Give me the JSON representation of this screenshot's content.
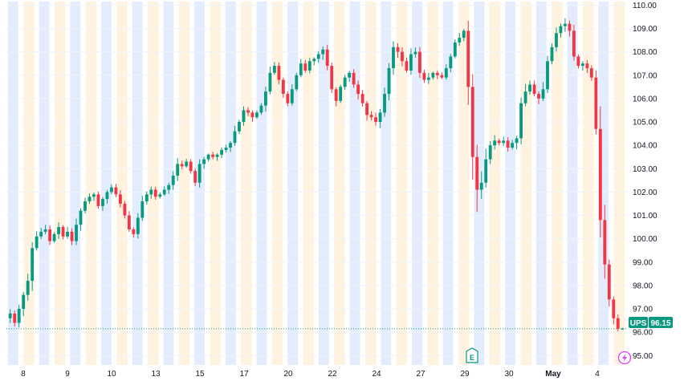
{
  "ticker": "UPS",
  "last_price_label": "96.15",
  "colors": {
    "up": "#089981",
    "down": "#f23645",
    "session_pre": "#fff3e0",
    "session_post": "#e3ecfc",
    "grid": "#f0f3fa",
    "text": "#131722",
    "tag_bg": "#089981",
    "earnings": "#089981",
    "lightning": "#e040fb"
  },
  "icons": {
    "earnings": "E",
    "lightning": "lightning-bolt-icon"
  },
  "chart_data": {
    "type": "candlestick",
    "title": "",
    "xlabel": "",
    "ylabel": "",
    "ylim": [
      94.6,
      110.15
    ],
    "y_ticks": [
      "95.00",
      "96.00",
      "97.00",
      "98.00",
      "99.00",
      "100.00",
      "101.00",
      "102.00",
      "103.00",
      "104.00",
      "105.00",
      "106.00",
      "107.00",
      "108.00",
      "109.00",
      "110.00"
    ],
    "y_tick_values": [
      95,
      96,
      97,
      98,
      99,
      100,
      101,
      102,
      103,
      104,
      105,
      106,
      107,
      108,
      109,
      110
    ],
    "x_ticks": [
      "8",
      "9",
      "10",
      "13",
      "15",
      "17",
      "20",
      "22",
      "24",
      "27",
      "29",
      "30",
      "May",
      "4"
    ],
    "last_price": 96.15,
    "grid": true,
    "sessions": 20,
    "closes": [
      96.8,
      96.4,
      97.0,
      97.6,
      98.2,
      99.6,
      100.1,
      100.3,
      100.4,
      99.9,
      100.2,
      100.5,
      100.1,
      100.3,
      99.9,
      100.6,
      101.2,
      101.6,
      101.8,
      101.9,
      101.4,
      101.7,
      102.0,
      102.2,
      101.9,
      101.5,
      101.0,
      100.4,
      100.2,
      100.9,
      101.6,
      101.9,
      102.1,
      101.8,
      101.9,
      102.1,
      102.3,
      102.7,
      103.2,
      103.1,
      103.3,
      102.9,
      102.4,
      103.2,
      103.4,
      103.6,
      103.5,
      103.6,
      103.8,
      103.9,
      104.1,
      104.6,
      105.0,
      105.5,
      105.4,
      105.2,
      105.4,
      105.7,
      106.3,
      107.1,
      107.4,
      106.8,
      106.2,
      105.8,
      106.4,
      107.0,
      107.5,
      107.2,
      107.6,
      107.7,
      107.9,
      108.1,
      107.4,
      106.4,
      105.9,
      106.5,
      106.9,
      107.1,
      106.6,
      106.2,
      105.8,
      105.3,
      105.2,
      105.0,
      105.4,
      106.2,
      107.3,
      108.2,
      108.0,
      107.6,
      107.2,
      107.9,
      108.0,
      107.1,
      106.8,
      106.9,
      107.1,
      107.0,
      106.9,
      107.3,
      107.8,
      108.4,
      108.6,
      108.9,
      106.5,
      103.5,
      102.1,
      102.4,
      103.4,
      104.0,
      104.2,
      104.1,
      104.2,
      103.9,
      104.1,
      104.3,
      105.8,
      106.3,
      106.6,
      106.2,
      106.0,
      106.4,
      107.6,
      108.2,
      108.8,
      109.1,
      109.2,
      108.9,
      107.8,
      107.4,
      107.5,
      107.3,
      106.9,
      104.7,
      100.8,
      98.9,
      97.4,
      96.6,
      96.15,
      96.15
    ],
    "volatility": [
      0.35,
      0.4,
      0.35,
      0.4,
      0.5,
      0.6,
      0.35,
      0.3,
      0.3,
      0.3,
      0.25,
      0.25,
      0.25,
      0.25,
      0.3,
      0.4,
      0.3,
      0.3,
      0.25,
      0.25,
      0.25,
      0.25,
      0.25,
      0.25,
      0.25,
      0.25,
      0.35,
      0.35,
      0.3,
      0.3,
      0.3,
      0.25,
      0.25,
      0.25,
      0.2,
      0.2,
      0.25,
      0.25,
      0.3,
      0.2,
      0.2,
      0.25,
      0.3,
      0.3,
      0.25,
      0.2,
      0.2,
      0.2,
      0.2,
      0.2,
      0.25,
      0.3,
      0.35,
      0.25,
      0.2,
      0.25,
      0.25,
      0.35,
      0.35,
      0.35,
      0.3,
      0.35,
      0.35,
      0.3,
      0.3,
      0.3,
      0.3,
      0.3,
      0.25,
      0.25,
      0.25,
      0.3,
      0.3,
      0.35,
      0.3,
      0.3,
      0.3,
      0.3,
      0.3,
      0.3,
      0.3,
      0.3,
      0.25,
      0.25,
      0.3,
      0.35,
      0.4,
      0.35,
      0.3,
      0.3,
      0.3,
      0.3,
      0.3,
      0.3,
      0.25,
      0.25,
      0.2,
      0.2,
      0.2,
      0.25,
      0.3,
      0.3,
      0.25,
      0.3,
      1.2,
      1.4,
      1.2,
      0.8,
      0.6,
      0.4,
      0.3,
      0.3,
      0.3,
      0.3,
      0.3,
      0.4,
      0.45,
      0.4,
      0.35,
      0.35,
      0.35,
      0.4,
      0.4,
      0.35,
      0.35,
      0.3,
      0.3,
      0.3,
      0.35,
      0.3,
      0.3,
      0.25,
      0.3,
      0.7,
      1.2,
      0.9,
      0.5,
      0.4,
      0.2,
      0.1
    ]
  }
}
